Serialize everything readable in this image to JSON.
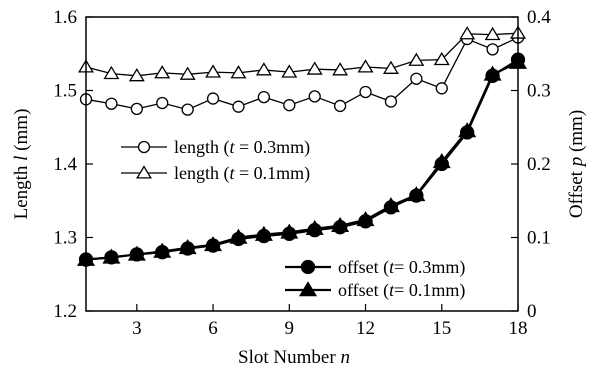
{
  "chart_data": {
    "type": "line",
    "x": [
      1,
      2,
      3,
      4,
      5,
      6,
      7,
      8,
      9,
      10,
      11,
      12,
      13,
      14,
      15,
      16,
      17,
      18
    ],
    "xlim": [
      1,
      18
    ],
    "x_ticks": [
      3,
      6,
      9,
      12,
      15,
      18
    ],
    "xlabel": {
      "text": "Slot Number ",
      "var": "n"
    },
    "left_axis": {
      "label": {
        "text_before": "Length ",
        "var": "l",
        "text_after": " (mm)"
      },
      "ylim": [
        1.2,
        1.6
      ],
      "ticks": [
        1.2,
        1.3,
        1.4,
        1.5,
        1.6
      ]
    },
    "right_axis": {
      "label": {
        "text_before": "Offset ",
        "var": "p",
        "text_after": " (mm)"
      },
      "ylim": [
        0,
        0.4
      ],
      "ticks": [
        0,
        0.1,
        0.2,
        0.3,
        0.4
      ]
    },
    "grid": false,
    "series": [
      {
        "name": {
          "prefix": "length (",
          "var": "t",
          "suffix": " = 0.3mm)"
        },
        "axis": "left",
        "marker": "circle",
        "filled": false,
        "values": [
          1.488,
          1.482,
          1.475,
          1.483,
          1.474,
          1.489,
          1.478,
          1.491,
          1.48,
          1.492,
          1.479,
          1.498,
          1.485,
          1.516,
          1.503,
          1.57,
          1.556,
          1.572
        ]
      },
      {
        "name": {
          "prefix": "length (",
          "var": "t",
          "suffix": " = 0.1mm)"
        },
        "axis": "left",
        "marker": "triangle",
        "filled": false,
        "values": [
          1.532,
          1.523,
          1.52,
          1.524,
          1.522,
          1.525,
          1.524,
          1.528,
          1.525,
          1.529,
          1.528,
          1.532,
          1.53,
          1.541,
          1.542,
          1.577,
          1.576,
          1.578
        ]
      },
      {
        "name": {
          "prefix": "offset (",
          "var": "t",
          "suffix": "= 0.3mm)"
        },
        "axis": "right",
        "marker": "circle",
        "filled": true,
        "values": [
          0.07,
          0.073,
          0.077,
          0.08,
          0.085,
          0.089,
          0.098,
          0.102,
          0.105,
          0.11,
          0.114,
          0.122,
          0.141,
          0.157,
          0.2,
          0.243,
          0.32,
          0.342
        ]
      },
      {
        "name": {
          "prefix": "offset (",
          "var": "t",
          "suffix": "= 0.1mm)"
        },
        "axis": "right",
        "marker": "triangle",
        "filled": true,
        "values": [
          0.07,
          0.073,
          0.077,
          0.081,
          0.086,
          0.09,
          0.1,
          0.104,
          0.107,
          0.112,
          0.116,
          0.124,
          0.143,
          0.158,
          0.203,
          0.245,
          0.322,
          0.338
        ]
      }
    ],
    "legends": [
      {
        "placement": "upper-left",
        "series": [
          0,
          1
        ]
      },
      {
        "placement": "bottom-right",
        "series": [
          2,
          3
        ]
      }
    ]
  }
}
